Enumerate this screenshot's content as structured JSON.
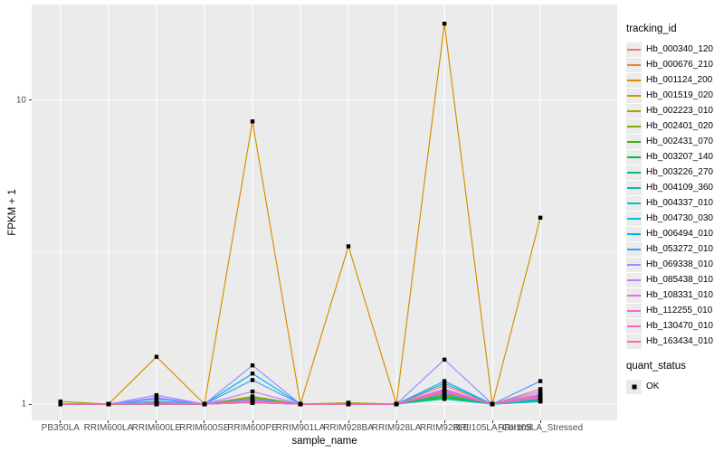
{
  "chart_data": {
    "type": "line",
    "title": "",
    "xlabel": "sample_name",
    "ylabel": "FPKM + 1",
    "y_scale": "log10",
    "y_ticks": [
      {
        "value": 1,
        "label": "1"
      },
      {
        "value": 10,
        "label": "10"
      }
    ],
    "y_minor": [
      3.162
    ],
    "ylim": [
      0.88,
      20.6
    ],
    "x_categories": [
      "PB350LA",
      "RRIM600LA",
      "RRIM600LE",
      "RRIM600SE",
      "RRIM600PE",
      "RRIM901LA",
      "RRIM928BA",
      "RRIM928LA",
      "RRIM928LE",
      "RRII105LA_Control",
      "RRII105LA_Stressed"
    ],
    "legend_title": "tracking_id",
    "quant_status": {
      "title": "quant_status",
      "items": [
        "OK"
      ]
    },
    "marker": {
      "shape": "filled-square",
      "color": "#000000",
      "size": 4.4
    },
    "colors": {
      "panel_bg": "#EBEBEB",
      "grid": "#FFFFFF",
      "tick_text": "#4D4D4D",
      "tick_mark": "#333333"
    },
    "series": [
      {
        "tracking_id": "Hb_000340_120",
        "color": "#F8766D",
        "values": [
          1,
          1,
          1,
          1,
          1.02,
          1,
          1,
          1,
          1.15,
          1,
          1.12
        ]
      },
      {
        "tracking_id": "Hb_000676_210",
        "color": "#EA8331",
        "values": [
          1,
          1,
          1,
          1,
          1.02,
          1,
          1,
          1,
          1.1,
          1,
          1.06
        ]
      },
      {
        "tracking_id": "Hb_001124_200",
        "color": "#D89000",
        "values": [
          1,
          1,
          1.43,
          1,
          8.5,
          1,
          3.3,
          1,
          17.8,
          1,
          4.1
        ]
      },
      {
        "tracking_id": "Hb_001519_020",
        "color": "#C09B00",
        "values": [
          1,
          1,
          1.01,
          1,
          1.03,
          1,
          1,
          1,
          1.08,
          1,
          1.05
        ]
      },
      {
        "tracking_id": "Hb_002223_010",
        "color": "#A3A500",
        "values": [
          1.02,
          1,
          1.02,
          1,
          1.06,
          1,
          1.01,
          1,
          1.09,
          1,
          1.06
        ]
      },
      {
        "tracking_id": "Hb_002401_020",
        "color": "#7CAE00",
        "values": [
          1,
          1,
          1.01,
          1,
          1.05,
          1,
          1,
          1,
          1.07,
          1,
          1.04
        ]
      },
      {
        "tracking_id": "Hb_002431_070",
        "color": "#39B600",
        "values": [
          1,
          1,
          1,
          1,
          1.02,
          1,
          1,
          1,
          1.06,
          1,
          1.03
        ]
      },
      {
        "tracking_id": "Hb_003207_140",
        "color": "#00BB4E",
        "values": [
          1,
          1,
          1,
          1,
          1.02,
          1,
          1,
          1,
          1.05,
          1,
          1.03
        ]
      },
      {
        "tracking_id": "Hb_003226_270",
        "color": "#00BF7D",
        "values": [
          1,
          1,
          1,
          1,
          1.01,
          1,
          1,
          1,
          1.05,
          1,
          1.02
        ]
      },
      {
        "tracking_id": "Hb_004109_360",
        "color": "#00C1A3",
        "values": [
          1,
          1,
          1,
          1,
          1.01,
          1,
          1,
          1,
          1.04,
          1,
          1.02
        ]
      },
      {
        "tracking_id": "Hb_004337_010",
        "color": "#00BFC4",
        "values": [
          1,
          1,
          1.01,
          1,
          1.02,
          1,
          1,
          1,
          1.17,
          1,
          1.03
        ]
      },
      {
        "tracking_id": "Hb_004730_030",
        "color": "#00BAE0",
        "values": [
          1,
          1,
          1.02,
          1,
          1.04,
          1,
          1,
          1,
          1.08,
          1,
          1.04
        ]
      },
      {
        "tracking_id": "Hb_006494_010",
        "color": "#00B0F6",
        "values": [
          1,
          1,
          1.04,
          1,
          1.26,
          1,
          1,
          1,
          1.12,
          1,
          1.08
        ]
      },
      {
        "tracking_id": "Hb_053272_010",
        "color": "#35A2FF",
        "values": [
          1,
          1,
          1.05,
          1,
          1.2,
          1,
          1,
          1,
          1.19,
          1,
          1.19
        ]
      },
      {
        "tracking_id": "Hb_069338_010",
        "color": "#9590FF",
        "values": [
          1,
          1,
          1.07,
          1,
          1.34,
          1,
          1,
          1,
          1.4,
          1,
          1.1
        ]
      },
      {
        "tracking_id": "Hb_085438_010",
        "color": "#C77CFF",
        "values": [
          1,
          1,
          1.05,
          1,
          1.1,
          1,
          1,
          1,
          1.12,
          1,
          1.08
        ]
      },
      {
        "tracking_id": "Hb_108331_010",
        "color": "#E76BF3",
        "values": [
          1,
          1,
          1.01,
          1,
          1.03,
          1,
          1,
          1,
          1.1,
          1,
          1.06
        ]
      },
      {
        "tracking_id": "Hb_112255_010",
        "color": "#FA62DB",
        "values": [
          1,
          1,
          1,
          1,
          1.02,
          1,
          1,
          1,
          1.09,
          1,
          1.05
        ]
      },
      {
        "tracking_id": "Hb_130470_010",
        "color": "#FF62BC",
        "values": [
          1,
          1,
          1,
          1,
          1.01,
          1,
          1,
          1,
          1.11,
          1,
          1.07
        ]
      },
      {
        "tracking_id": "Hb_163434_010",
        "color": "#FF6A98",
        "values": [
          1,
          1,
          1,
          1,
          1.01,
          1,
          1,
          1,
          1.1,
          1,
          1.06
        ]
      }
    ]
  }
}
